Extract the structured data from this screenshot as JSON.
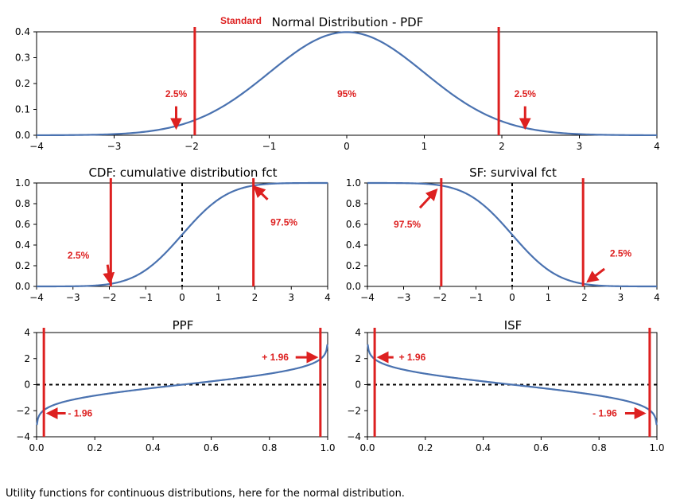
{
  "caption": "Utility functions for continuous distributions, here for the normal distribution.",
  "colors": {
    "curve": "#4a72b0",
    "marker": "#dd2020",
    "axis": "#000000"
  },
  "chart_data": [
    {
      "id": "pdf",
      "type": "line",
      "title": "Normal Distribution - PDF",
      "title_prefix": "Standard",
      "xlim": [
        -4,
        4
      ],
      "ylim": [
        0,
        0.4
      ],
      "xticks": [
        "−4",
        "−3",
        "−2",
        "−1",
        "0",
        "1",
        "2",
        "3",
        "4"
      ],
      "xtick_values": [
        -4,
        -3,
        -2,
        -1,
        0,
        1,
        2,
        3,
        4
      ],
      "yticks": [
        "0.0",
        "0.1",
        "0.2",
        "0.3",
        "0.4"
      ],
      "ytick_values": [
        0,
        0.1,
        0.2,
        0.3,
        0.4
      ],
      "series": [
        {
          "x": [
            -4,
            -3.5,
            -3,
            -2.5,
            -2,
            -1.5,
            -1,
            -0.5,
            0,
            0.5,
            1,
            1.5,
            2,
            2.5,
            3,
            3.5,
            4
          ],
          "y": [
            0.0001,
            0.0009,
            0.0044,
            0.0175,
            0.054,
            0.1295,
            0.242,
            0.3521,
            0.3989,
            0.3521,
            0.242,
            0.1295,
            0.054,
            0.0175,
            0.0044,
            0.0009,
            0.0001
          ]
        }
      ],
      "vlines": [
        -1.96,
        1.96
      ],
      "annotations": [
        {
          "text": "2.5%",
          "x": -2.2,
          "y": 0.16,
          "arrow_to": [
            -2.2,
            0.03
          ]
        },
        {
          "text": "95%",
          "x": 0,
          "y": 0.16
        },
        {
          "text": "2.5%",
          "x": 2.3,
          "y": 0.16,
          "arrow_to": [
            2.3,
            0.03
          ]
        }
      ]
    },
    {
      "id": "cdf",
      "type": "line",
      "title": "CDF: cumulative distribution fct",
      "xlim": [
        -4,
        4
      ],
      "ylim": [
        0,
        1
      ],
      "xticks": [
        "−4",
        "−3",
        "−2",
        "−1",
        "0",
        "1",
        "2",
        "3",
        "4"
      ],
      "xtick_values": [
        -4,
        -3,
        -2,
        -1,
        0,
        1,
        2,
        3,
        4
      ],
      "yticks": [
        "0.0",
        "0.2",
        "0.4",
        "0.6",
        "0.8",
        "1.0"
      ],
      "ytick_values": [
        0,
        0.2,
        0.4,
        0.6,
        0.8,
        1.0
      ],
      "series": [
        {
          "x": [
            -4,
            -3.5,
            -3,
            -2.5,
            -2,
            -1.5,
            -1,
            -0.5,
            0,
            0.5,
            1,
            1.5,
            2,
            2.5,
            3,
            3.5,
            4
          ],
          "y": [
            0.0,
            0.0002,
            0.0013,
            0.0062,
            0.0228,
            0.0668,
            0.1587,
            0.3085,
            0.5,
            0.6915,
            0.8413,
            0.9332,
            0.9772,
            0.9938,
            0.9987,
            0.9998,
            1.0
          ]
        }
      ],
      "vlines": [
        -1.96,
        1.96
      ],
      "dashed_vline": 0,
      "annotations": [
        {
          "text": "2.5%",
          "x": -2.85,
          "y": 0.3,
          "arrow_from": [
            -2.05,
            0.21
          ],
          "arrow_to": [
            -1.98,
            0.04
          ]
        },
        {
          "text": "97.5%",
          "x": 2.8,
          "y": 0.62,
          "arrow_from": [
            2.35,
            0.84
          ],
          "arrow_to": [
            2.0,
            0.96
          ]
        }
      ]
    },
    {
      "id": "sf",
      "type": "line",
      "title": "SF: survival fct",
      "xlim": [
        -4,
        4
      ],
      "ylim": [
        0,
        1
      ],
      "xticks": [
        "−4",
        "−3",
        "−2",
        "−1",
        "0",
        "1",
        "2",
        "3",
        "4"
      ],
      "xtick_values": [
        -4,
        -3,
        -2,
        -1,
        0,
        1,
        2,
        3,
        4
      ],
      "yticks": [
        "0.0",
        "0.2",
        "0.4",
        "0.6",
        "0.8",
        "1.0"
      ],
      "ytick_values": [
        0,
        0.2,
        0.4,
        0.6,
        0.8,
        1.0
      ],
      "series": [
        {
          "x": [
            -4,
            -3.5,
            -3,
            -2.5,
            -2,
            -1.5,
            -1,
            -0.5,
            0,
            0.5,
            1,
            1.5,
            2,
            2.5,
            3,
            3.5,
            4
          ],
          "y": [
            1.0,
            0.9998,
            0.9987,
            0.9938,
            0.9772,
            0.9332,
            0.8413,
            0.6915,
            0.5,
            0.3085,
            0.1587,
            0.0668,
            0.0228,
            0.0062,
            0.0013,
            0.0002,
            0.0
          ]
        }
      ],
      "vlines": [
        -1.96,
        1.96
      ],
      "dashed_vline": 0,
      "annotations": [
        {
          "text": "97.5%",
          "x": -2.9,
          "y": 0.6,
          "arrow_from": [
            -2.55,
            0.76
          ],
          "arrow_to": [
            -2.1,
            0.93
          ]
        },
        {
          "text": "2.5%",
          "x": 3.0,
          "y": 0.32,
          "arrow_from": [
            2.55,
            0.17
          ],
          "arrow_to": [
            2.1,
            0.05
          ]
        }
      ]
    },
    {
      "id": "ppf",
      "type": "line",
      "title": "PPF",
      "xlim": [
        0,
        1
      ],
      "ylim": [
        -4,
        4
      ],
      "xticks": [
        "0.0",
        "0.2",
        "0.4",
        "0.6",
        "0.8",
        "1.0"
      ],
      "xtick_values": [
        0,
        0.2,
        0.4,
        0.6,
        0.8,
        1.0
      ],
      "yticks": [
        "−4",
        "−2",
        "0",
        "2",
        "4"
      ],
      "ytick_values": [
        -4,
        -2,
        0,
        2,
        4
      ],
      "series": [
        {
          "x": [
            0.001,
            0.005,
            0.01,
            0.025,
            0.05,
            0.1,
            0.2,
            0.3,
            0.4,
            0.5,
            0.6,
            0.7,
            0.8,
            0.9,
            0.95,
            0.975,
            0.99,
            0.995,
            0.999
          ],
          "y": [
            -3.09,
            -2.576,
            -2.326,
            -1.96,
            -1.645,
            -1.282,
            -0.842,
            -0.524,
            -0.253,
            0,
            0.253,
            0.524,
            0.842,
            1.282,
            1.645,
            1.96,
            2.326,
            2.576,
            3.09
          ]
        }
      ],
      "vlines": [
        0.025,
        0.975
      ],
      "dashed_hline": 0,
      "annotations": [
        {
          "text": "+ 1.96",
          "x": 0.82,
          "y": 2.1,
          "arrow_from": [
            0.89,
            2.1
          ],
          "arrow_to": [
            0.96,
            2.1
          ]
        },
        {
          "text": "- 1.96",
          "x": 0.15,
          "y": -2.2,
          "arrow_from": [
            0.1,
            -2.2
          ],
          "arrow_to": [
            0.04,
            -2.2
          ]
        }
      ]
    },
    {
      "id": "isf",
      "type": "line",
      "title": "ISF",
      "xlim": [
        0,
        1
      ],
      "ylim": [
        -4,
        4
      ],
      "xticks": [
        "0.0",
        "0.2",
        "0.4",
        "0.6",
        "0.8",
        "1.0"
      ],
      "xtick_values": [
        0,
        0.2,
        0.4,
        0.6,
        0.8,
        1.0
      ],
      "yticks": [
        "−4",
        "−2",
        "0",
        "2",
        "4"
      ],
      "ytick_values": [
        -4,
        -2,
        0,
        2,
        4
      ],
      "series": [
        {
          "x": [
            0.001,
            0.005,
            0.01,
            0.025,
            0.05,
            0.1,
            0.2,
            0.3,
            0.4,
            0.5,
            0.6,
            0.7,
            0.8,
            0.9,
            0.95,
            0.975,
            0.99,
            0.995,
            0.999
          ],
          "y": [
            3.09,
            2.576,
            2.326,
            1.96,
            1.645,
            1.282,
            0.842,
            0.524,
            0.253,
            0,
            -0.253,
            -0.524,
            -0.842,
            -1.282,
            -1.645,
            -1.96,
            -2.326,
            -2.576,
            -3.09
          ]
        }
      ],
      "vlines": [
        0.025,
        0.975
      ],
      "dashed_hline": 0,
      "annotations": [
        {
          "text": "+ 1.96",
          "x": 0.155,
          "y": 2.1,
          "arrow_from": [
            0.09,
            2.1
          ],
          "arrow_to": [
            0.04,
            2.1
          ]
        },
        {
          "text": "- 1.96",
          "x": 0.82,
          "y": -2.2,
          "arrow_from": [
            0.89,
            -2.2
          ],
          "arrow_to": [
            0.955,
            -2.2
          ]
        }
      ]
    }
  ]
}
